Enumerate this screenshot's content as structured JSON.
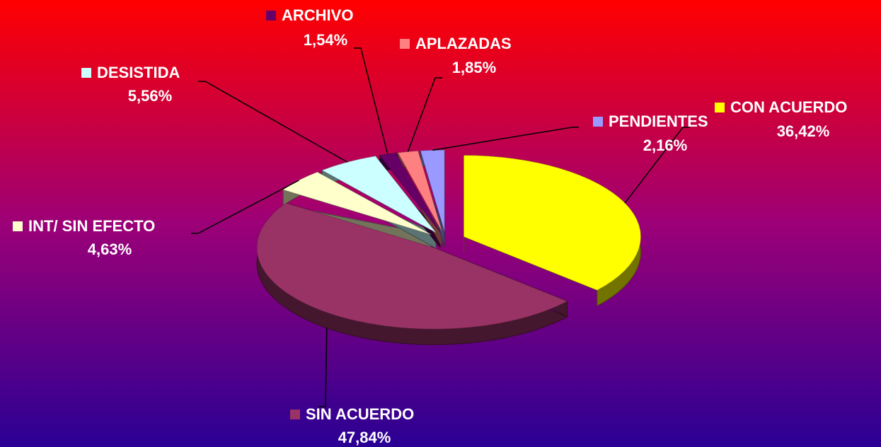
{
  "chart_data": {
    "type": "pie",
    "categories": [
      "CON ACUERDO",
      "SIN ACUERDO",
      "INT/ SIN EFECTO",
      "DESISTIDA",
      "ARCHIVO",
      "APLAZADAS",
      "PENDIENTES"
    ],
    "values": [
      36.42,
      47.84,
      4.63,
      5.56,
      1.54,
      1.85,
      2.16
    ],
    "value_labels": [
      "36,42%",
      "47,84%",
      "4,63%",
      "5,56%",
      "1,54%",
      "1,85%",
      "2,16%"
    ],
    "colors": [
      "#ffff00",
      "#993366",
      "#ffffcc",
      "#ccffff",
      "#660066",
      "#ff8080",
      "#9999ff"
    ]
  }
}
